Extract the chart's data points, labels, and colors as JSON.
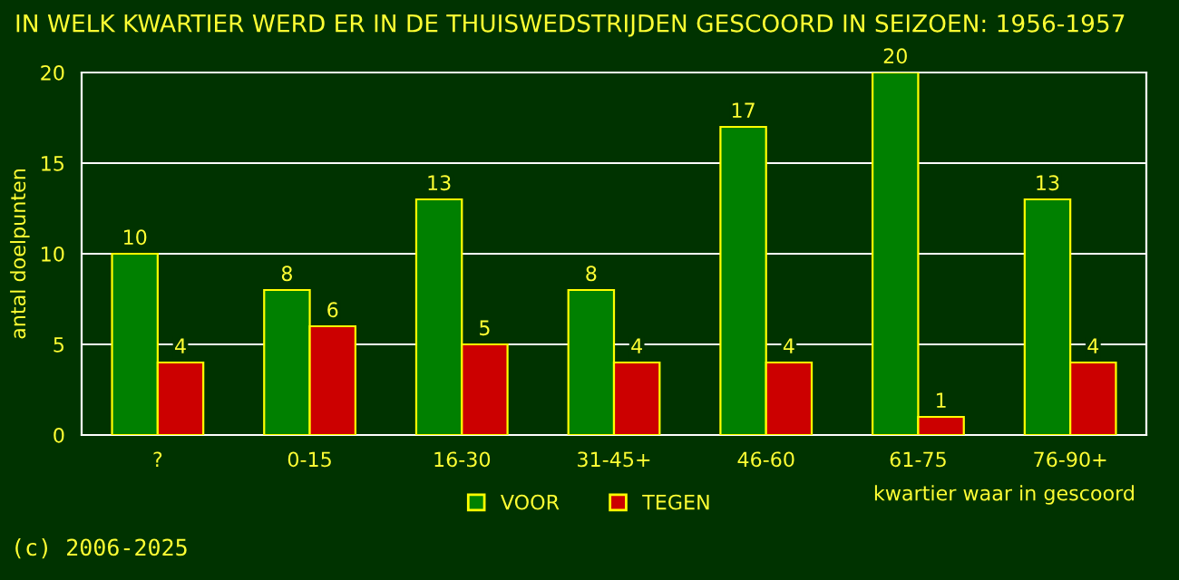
{
  "chart_data": {
    "type": "bar",
    "title": "IN WELK KWARTIER WERD ER IN DE THUISWEDSTRIJDEN GESCOORD IN SEIZOEN: 1956-1957",
    "xlabel": "kwartier waar in gescoord",
    "ylabel": "antal doelpunten",
    "categories": [
      "?",
      "0-15",
      "16-30",
      "31-45+",
      "46-60",
      "61-75",
      "76-90+"
    ],
    "series": [
      {
        "name": "VOOR",
        "color": "#008000",
        "values": [
          10,
          8,
          13,
          8,
          17,
          20,
          13
        ]
      },
      {
        "name": "TEGEN",
        "color": "#cc0000",
        "values": [
          4,
          6,
          5,
          4,
          4,
          1,
          4
        ]
      }
    ],
    "ylim": [
      0,
      20
    ],
    "yticks": [
      0,
      5,
      10,
      15,
      20
    ],
    "grid": "y",
    "legend": "bottom",
    "data_labels": true,
    "annotations": [
      "(c) 2006-2025"
    ]
  }
}
